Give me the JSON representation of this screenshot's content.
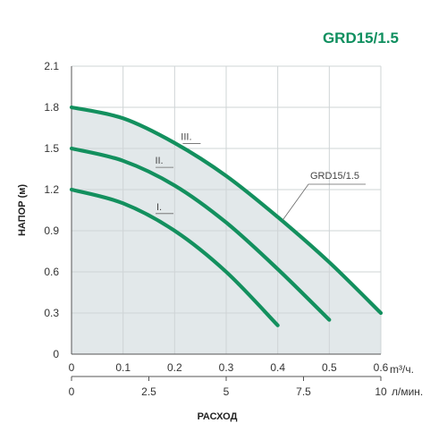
{
  "chart_data": {
    "type": "line",
    "title": "GRD15/1.5",
    "title_color": "#0f8f5f",
    "curve_color": "#13905e",
    "fill_color": "#e2e8ea",
    "grid": true,
    "xlabel": "РАСХОД",
    "ylabel": "НАПОР (м)",
    "x_unit": "m³/ч.",
    "x2_unit": "л/мин.",
    "xlim": [
      0,
      0.6
    ],
    "ylim": [
      0,
      2.1
    ],
    "x_ticks": [
      "0",
      "0.1",
      "0.2",
      "0.3",
      "0.4",
      "0.5",
      "0.6"
    ],
    "x2_ticks": [
      "0",
      "2.5",
      "5",
      "7.5",
      "10"
    ],
    "x2_values": [
      0,
      2.5,
      5,
      7.5,
      10
    ],
    "x2_per_x": 16.6667,
    "y_ticks": [
      "0",
      "0.3",
      "0.6",
      "0.9",
      "1.2",
      "1.5",
      "1.8",
      "2.1"
    ],
    "series": [
      {
        "name": "I.",
        "points": [
          [
            0,
            1.2
          ],
          [
            0.1,
            1.1
          ],
          [
            0.2,
            0.9
          ],
          [
            0.3,
            0.6
          ],
          [
            0.4,
            0.21
          ]
        ]
      },
      {
        "name": "II.",
        "points": [
          [
            0,
            1.5
          ],
          [
            0.1,
            1.41
          ],
          [
            0.2,
            1.23
          ],
          [
            0.3,
            0.96
          ],
          [
            0.4,
            0.62
          ],
          [
            0.5,
            0.25
          ]
        ]
      },
      {
        "name": "III.",
        "points": [
          [
            0,
            1.8
          ],
          [
            0.1,
            1.72
          ],
          [
            0.2,
            1.54
          ],
          [
            0.3,
            1.3
          ],
          [
            0.4,
            1.0
          ],
          [
            0.5,
            0.67
          ],
          [
            0.6,
            0.3
          ]
        ]
      }
    ],
    "annotations": [
      {
        "text": "GRD15/1.5",
        "target": "envelope"
      }
    ]
  }
}
